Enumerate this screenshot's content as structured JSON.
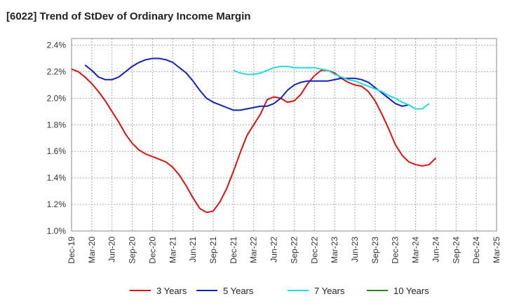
{
  "title": "[6022]  Trend of StDev of Ordinary Income Margin",
  "chart_data": {
    "type": "line",
    "title": "[6022]  Trend of StDev of Ordinary Income Margin",
    "xlabel": "",
    "ylabel": "",
    "x_ticks": [
      "Dec-19",
      "Mar-20",
      "Jun-20",
      "Sep-20",
      "Dec-20",
      "Mar-21",
      "Jun-21",
      "Sep-21",
      "Dec-21",
      "Mar-22",
      "Jun-22",
      "Sep-22",
      "Dec-22",
      "Mar-23",
      "Jun-23",
      "Sep-23",
      "Dec-23",
      "Mar-24",
      "Jun-24",
      "Sep-24",
      "Dec-24",
      "Mar-25"
    ],
    "y_ticks": [
      "1.0%",
      "1.2%",
      "1.4%",
      "1.6%",
      "1.8%",
      "2.0%",
      "2.2%",
      "2.4%"
    ],
    "ylim": [
      1.0,
      2.45
    ],
    "grid": true,
    "legend_position": "bottom",
    "series": [
      {
        "name": "3 Years",
        "color": "#dd1111",
        "start_index": 0,
        "values": [
          2.22,
          2.2,
          2.16,
          2.11,
          2.05,
          1.98,
          1.9,
          1.82,
          1.73,
          1.66,
          1.61,
          1.58,
          1.56,
          1.54,
          1.52,
          1.48,
          1.42,
          1.34,
          1.25,
          1.17,
          1.14,
          1.15,
          1.22,
          1.32,
          1.45,
          1.59,
          1.72,
          1.8,
          1.88,
          1.99,
          2.01,
          2.0,
          1.97,
          1.98,
          2.03,
          2.11,
          2.17,
          2.21,
          2.21,
          2.19,
          2.15,
          2.12,
          2.1,
          2.09,
          2.05,
          1.98,
          1.88,
          1.77,
          1.65,
          1.57,
          1.52,
          1.5,
          1.49,
          1.5,
          1.55
        ]
      },
      {
        "name": "5 Years",
        "color": "#1122bb",
        "start_index": 2,
        "values": [
          2.25,
          2.21,
          2.16,
          2.14,
          2.14,
          2.16,
          2.2,
          2.24,
          2.27,
          2.29,
          2.3,
          2.3,
          2.29,
          2.27,
          2.23,
          2.19,
          2.13,
          2.06,
          2.0,
          1.97,
          1.95,
          1.93,
          1.91,
          1.91,
          1.92,
          1.93,
          1.94,
          1.94,
          1.96,
          2.0,
          2.06,
          2.1,
          2.12,
          2.13,
          2.13,
          2.13,
          2.13,
          2.14,
          2.15,
          2.15,
          2.15,
          2.14,
          2.12,
          2.08,
          2.04,
          2.0,
          1.96,
          1.94,
          1.95
        ]
      },
      {
        "name": "7 Years",
        "color": "#22dddd",
        "start_index": 24,
        "values": [
          2.21,
          2.19,
          2.18,
          2.18,
          2.19,
          2.21,
          2.23,
          2.24,
          2.24,
          2.23,
          2.23,
          2.23,
          2.23,
          2.22,
          2.21,
          2.18,
          2.16,
          2.14,
          2.13,
          2.11,
          2.09,
          2.07,
          2.05,
          2.02,
          2.0,
          1.97,
          1.95,
          1.92,
          1.92,
          1.96
        ]
      },
      {
        "name": "10 Years",
        "color": "#228822",
        "start_index": 0,
        "values": []
      }
    ]
  }
}
